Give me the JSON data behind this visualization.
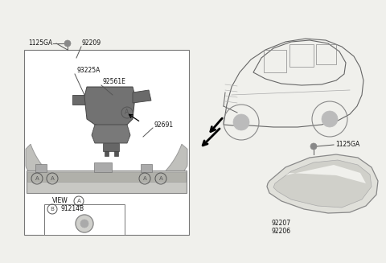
{
  "bg_color": "#f0f0ec",
  "box_color": "#ffffff",
  "line_color": "#555555",
  "part_color": "#888888",
  "part_light": "#c8c8c4",
  "part_dark": "#666666",
  "strip_color": "#b0b0a8",
  "labels": {
    "1125GA_left": "1125GA",
    "92209": "92209",
    "93225A": "93225A",
    "92561E": "92561E",
    "92691": "92691",
    "91214B": "91214B",
    "VIEW_A": "VIEW",
    "1125GA_right": "1125GA",
    "92207": "92207",
    "92206": "92206"
  }
}
